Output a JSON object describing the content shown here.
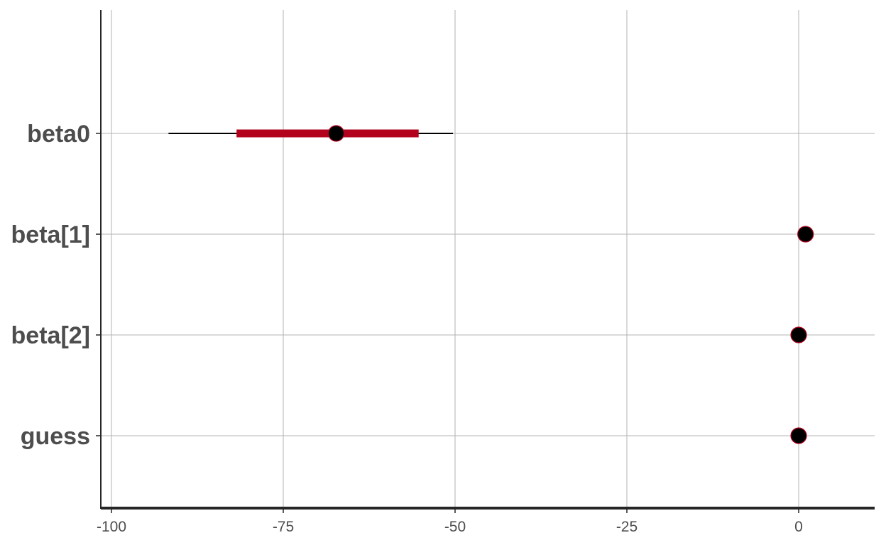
{
  "chart_data": {
    "type": "interval",
    "title": "",
    "xlabel": "",
    "ylabel": "",
    "grid": true,
    "xlim": [
      -101.5,
      11
    ],
    "x_ticks": [
      -100,
      -75,
      -50,
      -25,
      0
    ],
    "x_tick_labels": [
      "-100",
      "-75",
      "-50",
      "-25",
      "0"
    ],
    "parameters": [
      {
        "name": "beta0",
        "point": -67.3,
        "inner": [
          -81.8,
          -55.3
        ],
        "outer": [
          -91.7,
          -50.3
        ]
      },
      {
        "name": "beta[1]",
        "point": 1.0,
        "inner": [
          0.8,
          1.2
        ],
        "outer": [
          0.6,
          1.4
        ]
      },
      {
        "name": "beta[2]",
        "point": 0.0,
        "inner": [
          -0.1,
          0.1
        ],
        "outer": [
          -0.2,
          0.2
        ]
      },
      {
        "name": "guess",
        "point": 0.0,
        "inner": [
          0.0,
          0.0
        ],
        "outer": [
          0.0,
          0.0
        ]
      }
    ],
    "colors": {
      "inner_interval": "#b2001d",
      "outer_interval": "#000000",
      "point_fill": "#000000",
      "point_outline": "#b2001d",
      "grid": "#b3b3b3",
      "axis": "#262626"
    }
  }
}
